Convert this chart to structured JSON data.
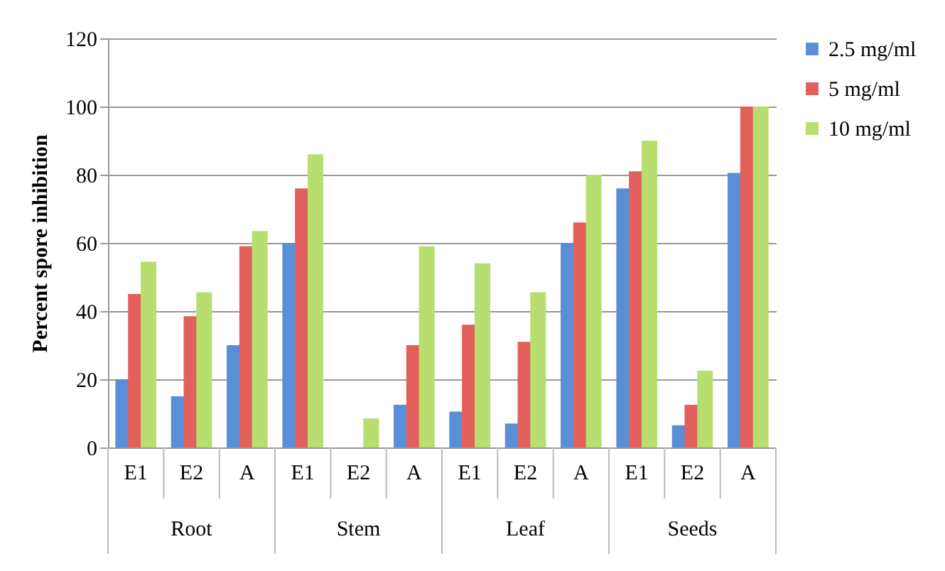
{
  "chart_data": {
    "type": "bar",
    "ylabel": "Percent spore inhibition",
    "categories": [
      "E1",
      "E2",
      "A",
      "E1",
      "E2",
      "A",
      "E1",
      "E2",
      "A",
      "E1",
      "E2",
      "A"
    ],
    "annotations": [
      "Root",
      "Stem",
      "Leaf",
      "Seeds"
    ],
    "series": [
      {
        "name": "2.5 mg/ml",
        "color": "#5a8fd8",
        "values": [
          20,
          15,
          30,
          60,
          0,
          12.5,
          10.5,
          7,
          60,
          76,
          6.5,
          80.5
        ]
      },
      {
        "name": "5 mg/ml",
        "color": "#e25f5c",
        "values": [
          45,
          38.5,
          59,
          76,
          0,
          30,
          36,
          31,
          66,
          81,
          12.5,
          100
        ]
      },
      {
        "name": "10 mg/ml",
        "color": "#b8de6f",
        "values": [
          54.5,
          45.5,
          63.5,
          86,
          8.5,
          59,
          54,
          45.5,
          80,
          90,
          22.5,
          100
        ]
      }
    ],
    "ylim": [
      0,
      120
    ],
    "yticks": [
      0,
      20,
      40,
      60,
      80,
      100,
      120
    ],
    "grid": "y",
    "legend": "right"
  }
}
